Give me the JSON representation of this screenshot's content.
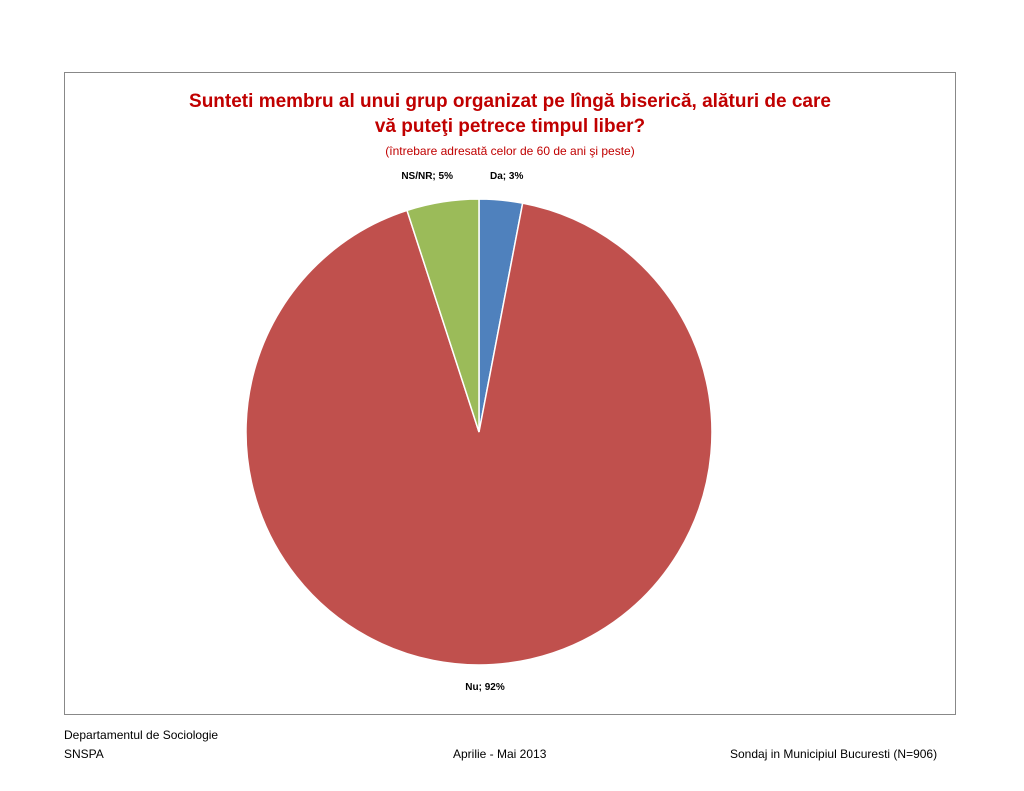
{
  "chart_data": {
    "type": "pie",
    "title_line1": "Sunteti membru al unui grup organizat pe lîngă biserică, alături de care",
    "title_line2": "vă puteţi petrece timpul liber?",
    "subtitle": "(întrebare adresată celor de 60 de ani şi peste)",
    "slices": [
      {
        "label": "Da",
        "value": 3,
        "color": "#4f81bd",
        "data_label": "Da; 3%"
      },
      {
        "label": "Nu",
        "value": 92,
        "color": "#c0504d",
        "data_label": "Nu; 92%"
      },
      {
        "label": "NS/NR",
        "value": 5,
        "color": "#9bbb59",
        "data_label": "NS/NR; 5%"
      }
    ],
    "legend": "none"
  },
  "footer": {
    "institution_line1": "Departamentul de Sociologie",
    "institution_line2": "SNSPA",
    "date": "Aprilie - Mai 2013",
    "survey": "Sondaj in Municipiul Bucuresti (N=906)"
  }
}
